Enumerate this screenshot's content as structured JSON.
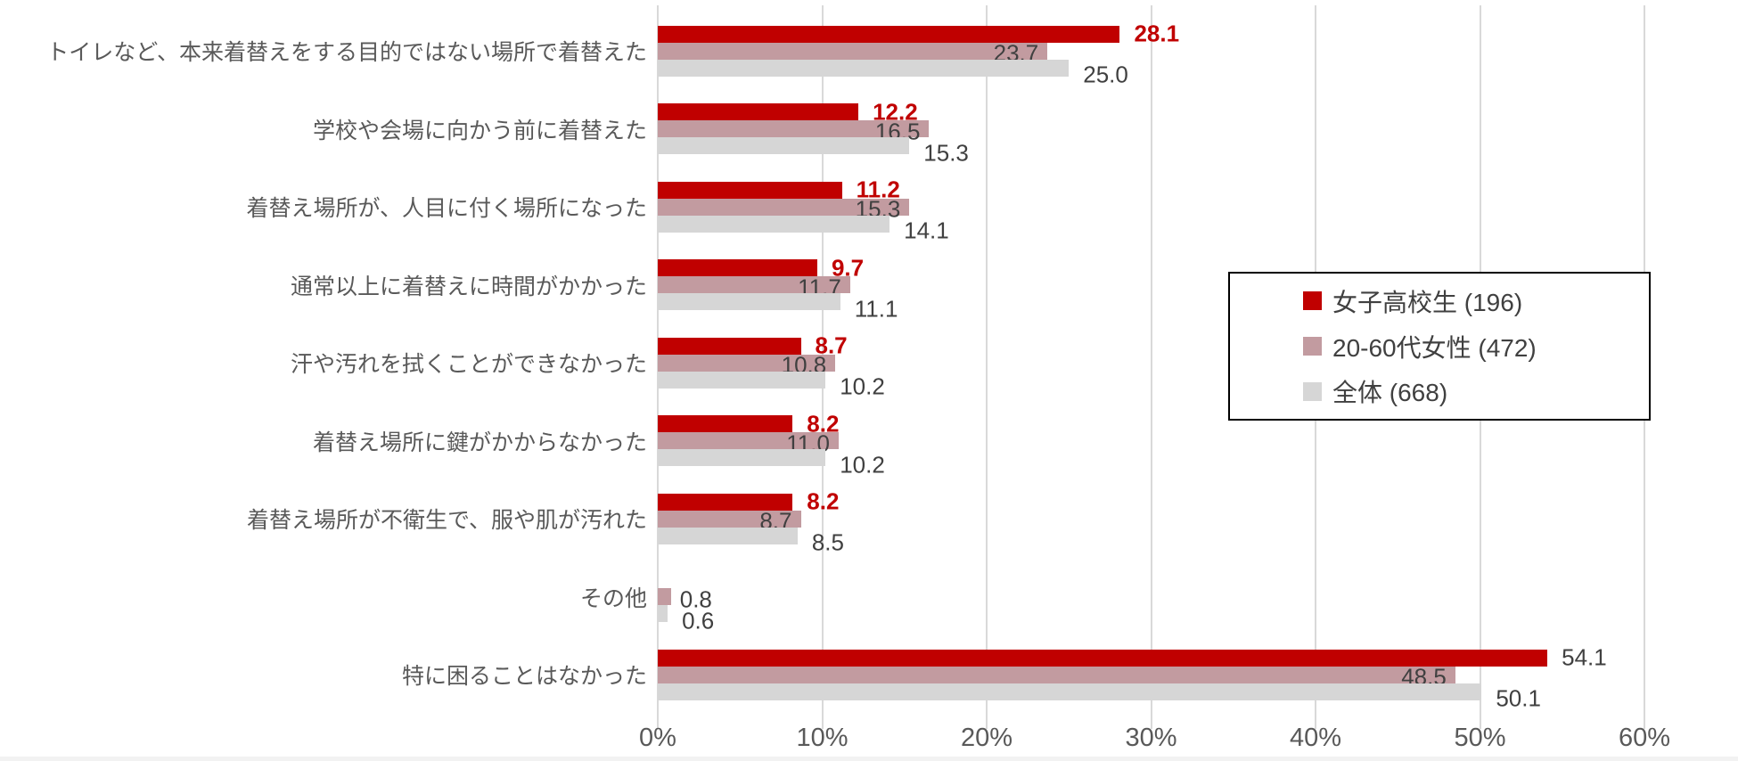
{
  "chart_data": {
    "type": "bar",
    "orientation": "horizontal",
    "title": "",
    "categories": [
      "トイレなど、本来着替えをする目的ではない場所で着替えた",
      "学校や会場に向かう前に着替えた",
      "着替え場所が、人目に付く場所になった",
      "通常以上に着替えに時間がかかった",
      "汗や汚れを拭くことができなかった",
      "着替え場所に鍵がかからなかった",
      "着替え場所が不衛生で、服や肌が汚れた",
      "その他",
      "特に困ることはなかった"
    ],
    "series": [
      {
        "name": "女子高校生 (196)",
        "color": "#C00000",
        "values": [
          28.1,
          12.2,
          11.2,
          9.7,
          8.7,
          8.2,
          8.2,
          null,
          54.1
        ]
      },
      {
        "name": "20-60代女性 (472)",
        "color": "#C29BA0",
        "values": [
          23.7,
          16.5,
          15.3,
          11.7,
          10.8,
          11.0,
          8.7,
          0.8,
          48.5
        ]
      },
      {
        "name": "全体 (668)",
        "color": "#D6D6D6",
        "values": [
          25.0,
          15.3,
          14.1,
          11.1,
          10.2,
          10.2,
          8.5,
          0.6,
          50.1
        ]
      }
    ],
    "x_axis": {
      "tick_labels": [
        "0%",
        "10%",
        "20%",
        "30%",
        "40%",
        "50%",
        "60%"
      ],
      "min": 0,
      "max": 60,
      "step": 10,
      "unit": "%"
    },
    "grid": "vertical-only",
    "legend_position": "right-middle",
    "emphasized_series": "女子高校生 (196)",
    "emphasized_rows": [
      true,
      true,
      true,
      true,
      true,
      true,
      true,
      false,
      false
    ]
  },
  "legend": {
    "items": [
      {
        "label": "女子高校生 (196)",
        "color": "#C00000"
      },
      {
        "label": "20-60代女性 (472)",
        "color": "#C29BA0"
      },
      {
        "label": "全体 (668)",
        "color": "#D6D6D6"
      }
    ]
  },
  "colors": {
    "emphasis_value": "#C00000",
    "value_text": "#404040",
    "axis_text": "#595959",
    "category_text": "#595959",
    "gridline": "#D9D9D9",
    "legend_border": "#000000",
    "background": "#FFFFFF"
  }
}
